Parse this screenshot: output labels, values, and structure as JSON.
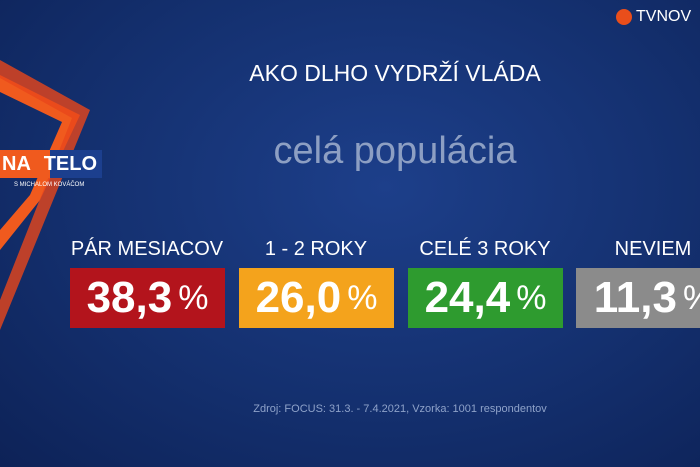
{
  "header": {
    "title": "AKO DLHO VYDRŽÍ VLÁDA",
    "subtitle": "celá populácia"
  },
  "logo": {
    "channel": "TVNOV",
    "show": "NA",
    "show2": "TELO",
    "host": "S MICHALOM KOVÁČOM"
  },
  "unit": "%",
  "items": [
    {
      "label": "PÁR MESIACOV",
      "value": "38,3",
      "color": "#b3141c"
    },
    {
      "label": "1 - 2 ROKY",
      "value": "26,0",
      "color": "#f4a31c"
    },
    {
      "label": "CELÉ 3 ROKY",
      "value": "24,4",
      "color": "#2e9b2f"
    },
    {
      "label": "NEVIEM",
      "value": "11,3",
      "color": "#8b8b8b"
    }
  ],
  "source": "Zdroj: FOCUS: 31.3. - 7.4.2021, Vzorka: 1001 respondentov"
}
